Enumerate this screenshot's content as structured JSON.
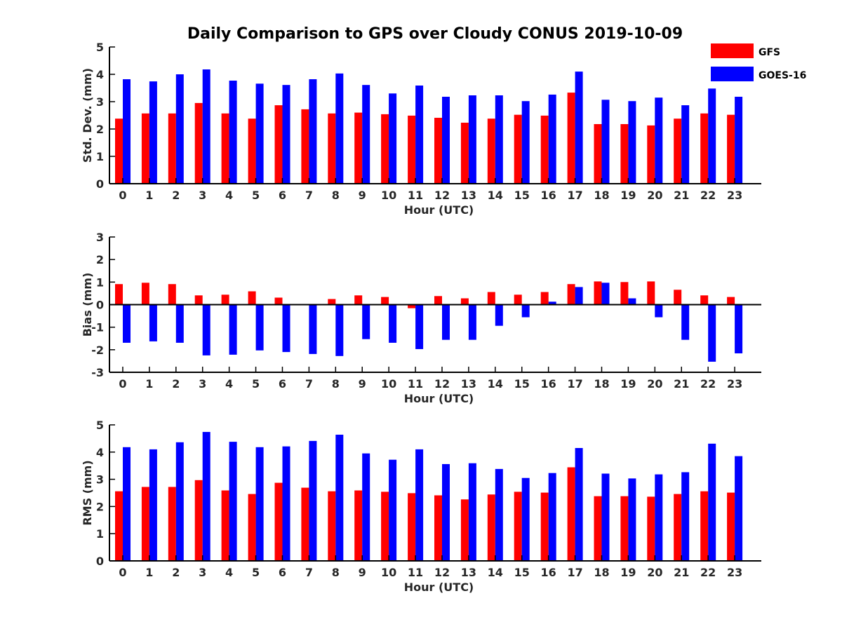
{
  "title": "Daily Comparison to GPS over Cloudy CONUS 2019-10-09",
  "legend": {
    "position": "top-right",
    "entries": [
      "GFS",
      "GOES-16"
    ]
  },
  "colors": {
    "GFS": "#ff0000",
    "GOES-16": "#0000ff"
  },
  "chart_data": [
    {
      "type": "bar",
      "ylabel": "Std. Dev. (mm)",
      "xlabel": "Hour (UTC)",
      "ylim": [
        0,
        5
      ],
      "yticks": [
        "0",
        "1",
        "2",
        "3",
        "4",
        "5"
      ],
      "categories": [
        "0",
        "1",
        "2",
        "3",
        "4",
        "5",
        "6",
        "7",
        "8",
        "9",
        "10",
        "11",
        "12",
        "13",
        "14",
        "15",
        "16",
        "17",
        "18",
        "19",
        "20",
        "21",
        "22",
        "23"
      ],
      "series": [
        {
          "name": "GFS",
          "values": [
            2.38,
            2.57,
            2.57,
            2.95,
            2.57,
            2.38,
            2.87,
            2.72,
            2.57,
            2.6,
            2.54,
            2.49,
            2.41,
            2.23,
            2.38,
            2.52,
            2.49,
            3.33,
            2.18,
            2.18,
            2.13,
            2.38,
            2.57,
            2.52
          ]
        },
        {
          "name": "GOES-16",
          "values": [
            3.82,
            3.74,
            4.0,
            4.18,
            3.77,
            3.66,
            3.61,
            3.82,
            4.03,
            3.61,
            3.3,
            3.59,
            3.18,
            3.23,
            3.23,
            3.02,
            3.26,
            4.1,
            3.07,
            3.02,
            3.15,
            2.87,
            3.48,
            3.18
          ]
        }
      ]
    },
    {
      "type": "bar",
      "ylabel": "Bias (mm)",
      "xlabel": "Hour (UTC)",
      "ylim": [
        -3,
        3
      ],
      "yticks": [
        "-3",
        "-2",
        "-1",
        "0",
        "1",
        "2",
        "3"
      ],
      "categories": [
        "0",
        "1",
        "2",
        "3",
        "4",
        "5",
        "6",
        "7",
        "8",
        "9",
        "10",
        "11",
        "12",
        "13",
        "14",
        "15",
        "16",
        "17",
        "18",
        "19",
        "20",
        "21",
        "22",
        "23"
      ],
      "series": [
        {
          "name": "GFS",
          "values": [
            0.91,
            0.97,
            0.91,
            0.41,
            0.44,
            0.59,
            0.31,
            0.0,
            0.25,
            0.41,
            0.34,
            -0.16,
            0.38,
            0.28,
            0.56,
            0.44,
            0.56,
            0.91,
            1.03,
            1.0,
            1.03,
            0.66,
            0.41,
            0.34
          ]
        },
        {
          "name": "GOES-16",
          "values": [
            -1.69,
            -1.63,
            -1.69,
            -2.25,
            -2.22,
            -2.03,
            -2.1,
            -2.19,
            -2.28,
            -1.53,
            -1.69,
            -1.97,
            -1.56,
            -1.56,
            -0.94,
            -0.56,
            0.13,
            0.78,
            0.97,
            0.28,
            -0.56,
            -1.56,
            -2.53,
            -2.16
          ]
        }
      ]
    },
    {
      "type": "bar",
      "ylabel": "RMS (mm)",
      "xlabel": "Hour (UTC)",
      "ylim": [
        0,
        5
      ],
      "yticks": [
        "0",
        "1",
        "2",
        "3",
        "4",
        "5"
      ],
      "categories": [
        "0",
        "1",
        "2",
        "3",
        "4",
        "5",
        "6",
        "7",
        "8",
        "9",
        "10",
        "11",
        "12",
        "13",
        "14",
        "15",
        "16",
        "17",
        "18",
        "19",
        "20",
        "21",
        "22",
        "23"
      ],
      "series": [
        {
          "name": "GFS",
          "values": [
            2.56,
            2.72,
            2.72,
            2.97,
            2.59,
            2.46,
            2.87,
            2.69,
            2.56,
            2.59,
            2.54,
            2.49,
            2.41,
            2.26,
            2.44,
            2.54,
            2.51,
            3.44,
            2.38,
            2.38,
            2.36,
            2.46,
            2.56,
            2.51
          ]
        },
        {
          "name": "GOES-16",
          "values": [
            4.18,
            4.1,
            4.36,
            4.74,
            4.38,
            4.18,
            4.21,
            4.41,
            4.64,
            3.95,
            3.72,
            4.1,
            3.56,
            3.59,
            3.38,
            3.05,
            3.23,
            4.15,
            3.21,
            3.03,
            3.18,
            3.26,
            4.31,
            3.85
          ]
        }
      ]
    }
  ]
}
